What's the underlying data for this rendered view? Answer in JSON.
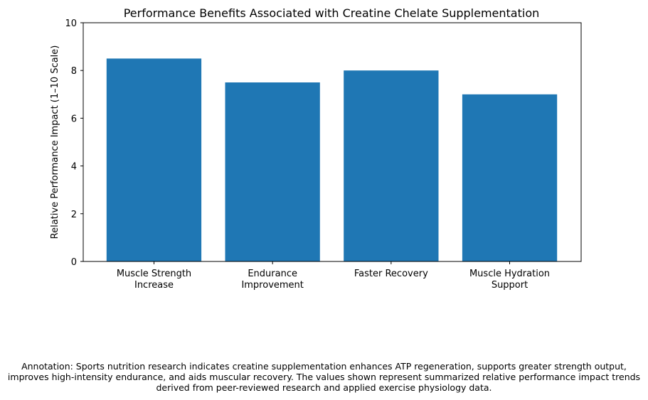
{
  "chart_data": {
    "type": "bar",
    "title": "Performance Benefits Associated with Creatine Chelate Supplementation",
    "xlabel": "",
    "ylabel": "Relative Performance Impact (1–10 Scale)",
    "categories": [
      [
        "Muscle Strength",
        "Increase"
      ],
      [
        "Endurance",
        "Improvement"
      ],
      [
        "Faster Recovery"
      ],
      [
        "Muscle Hydration",
        "Support"
      ]
    ],
    "values": [
      8.5,
      7.5,
      8,
      7
    ],
    "ylim": [
      0,
      10
    ],
    "yticks": [
      "0",
      "2",
      "4",
      "6",
      "8",
      "10"
    ],
    "grid": false,
    "bar_color": "#1f77b4"
  },
  "annotation": {
    "lines": [
      "Annotation: Sports nutrition research indicates creatine supplementation enhances ATP regeneration, supports greater strength output,",
      "improves high-intensity endurance, and aids muscular recovery. The values shown represent summarized relative performance impact trends",
      "derived from peer-reviewed research and applied exercise physiology data."
    ]
  }
}
